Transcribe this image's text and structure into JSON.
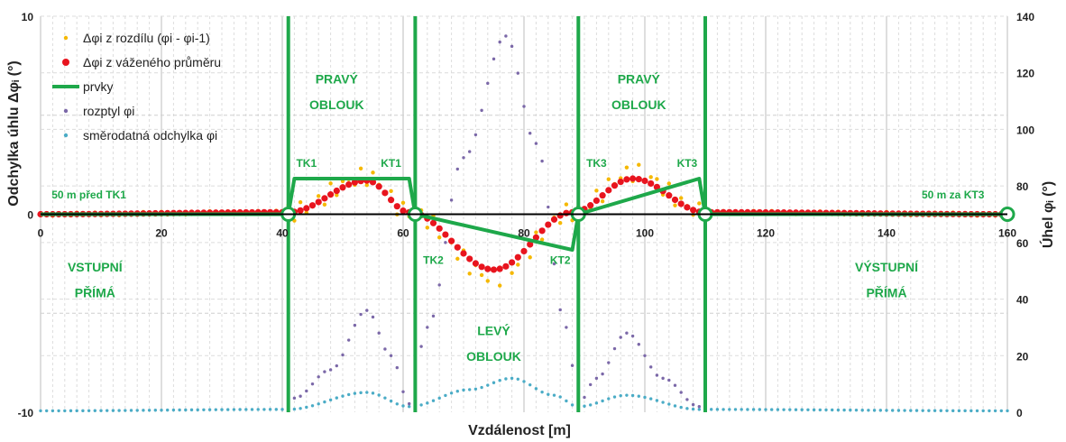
{
  "chart_data": {
    "type": "scatter",
    "xlabel": "Vzdálenost [m]",
    "ylabel": "Odchylka úhlu Δφᵢ (°)",
    "y2label": "Úhel φᵢ (°)",
    "xlim": [
      0,
      160
    ],
    "ylim": [
      -10,
      10
    ],
    "y2lim": [
      0,
      140
    ],
    "xticks": [
      "0",
      "20",
      "40",
      "60",
      "80",
      "100",
      "120",
      "140",
      "160"
    ],
    "yticks": [
      "10",
      "0",
      "-10"
    ],
    "y2ticks": [
      "140",
      "120",
      "100",
      "80",
      "60",
      "40",
      "20",
      "0"
    ],
    "grid": true,
    "legend_position": "top-left",
    "legend": [
      {
        "name": "Δφi z rozdílu (φi - φi-1)",
        "color": "#f5b800",
        "marker": "small-dot"
      },
      {
        "name": "Δφi z váženého průměru",
        "color": "#e8141e",
        "marker": "dot"
      },
      {
        "name": "prvky",
        "color": "#1ea84a",
        "marker": "line"
      },
      {
        "name": "rozptyl φi",
        "color": "#7b68a8",
        "marker": "small-dot"
      },
      {
        "name": "směrodatná odchylka φi",
        "color": "#4bacc6",
        "marker": "small-dot"
      }
    ],
    "series": [
      {
        "name": "prvky",
        "axis": "left",
        "x": [
          0,
          41,
          42,
          61,
          62,
          88,
          89,
          109,
          110,
          160
        ],
        "y": [
          0,
          0,
          1.8,
          1.8,
          0,
          -1.8,
          0,
          1.8,
          0,
          0
        ]
      },
      {
        "name": "Δφi z váženého průměru",
        "axis": "left",
        "profile": [
          [
            0,
            0
          ],
          [
            41,
            0.1
          ],
          [
            54,
            1.7
          ],
          [
            61,
            0.1
          ],
          [
            75,
            -2.8
          ],
          [
            88,
            0.1
          ],
          [
            98,
            1.8
          ],
          [
            110,
            0.1
          ],
          [
            160,
            0
          ]
        ]
      },
      {
        "name": "Δφi z rozdílu (φi - φi-1)",
        "axis": "left",
        "profile": [
          [
            0,
            0
          ],
          [
            41,
            0.1
          ],
          [
            54,
            1.9
          ],
          [
            61,
            0.1
          ],
          [
            75,
            -3.2
          ],
          [
            88,
            0.1
          ],
          [
            98,
            2.1
          ],
          [
            110,
            0.1
          ],
          [
            160,
            0
          ]
        ]
      },
      {
        "name": "rozptyl φi",
        "axis": "right",
        "profile": [
          [
            0,
            0.5
          ],
          [
            40,
            1
          ],
          [
            42,
            5
          ],
          [
            48,
            15
          ],
          [
            54,
            36
          ],
          [
            58,
            20
          ],
          [
            61,
            3
          ],
          [
            64,
            30
          ],
          [
            70,
            90
          ],
          [
            77,
            133
          ],
          [
            82,
            95
          ],
          [
            87,
            30
          ],
          [
            89,
            3
          ],
          [
            92,
            12
          ],
          [
            97,
            28
          ],
          [
            103,
            12
          ],
          [
            109,
            2
          ],
          [
            160,
            0.5
          ]
        ]
      },
      {
        "name": "směrodatná odchylka φi",
        "axis": "right",
        "profile": [
          [
            0,
            0.5
          ],
          [
            41,
            1
          ],
          [
            54,
            7
          ],
          [
            61,
            2
          ],
          [
            71,
            8
          ],
          [
            78,
            12
          ],
          [
            85,
            6
          ],
          [
            89,
            2
          ],
          [
            97,
            6
          ],
          [
            109,
            1
          ],
          [
            160,
            0.5
          ]
        ]
      }
    ],
    "annotations": [
      {
        "text": "50 m před TK1",
        "x": 8,
        "y": 0.8
      },
      {
        "text": "50 m za KT3",
        "x": 151,
        "y": 0.8
      },
      {
        "text": "TK1",
        "x": 44,
        "y": 2.4
      },
      {
        "text": "KT1",
        "x": 58,
        "y": 2.4
      },
      {
        "text": "TK2",
        "x": 65,
        "y": -2.5
      },
      {
        "text": "KT2",
        "x": 86,
        "y": -2.5
      },
      {
        "text": "TK3",
        "x": 92,
        "y": 2.4
      },
      {
        "text": "KT3",
        "x": 107,
        "y": 2.4
      },
      {
        "text": "PRAVÝ",
        "x": 49,
        "y": 6.6
      },
      {
        "text": "OBLOUK",
        "x": 49,
        "y": 5.3
      },
      {
        "text": "PRAVÝ",
        "x": 99,
        "y": 6.6
      },
      {
        "text": "OBLOUK",
        "x": 99,
        "y": 5.3
      },
      {
        "text": "LEVÝ",
        "x": 75,
        "y": -6.1
      },
      {
        "text": "OBLOUK",
        "x": 75,
        "y": -7.4
      },
      {
        "text": "VSTUPNÍ",
        "x": 9,
        "y": -2.9
      },
      {
        "text": "PŘÍMÁ",
        "x": 9,
        "y": -4.2
      },
      {
        "text": "VÝSTUPNÍ",
        "x": 140,
        "y": -2.9
      },
      {
        "text": "PŘÍMÁ",
        "x": 140,
        "y": -4.2
      }
    ],
    "marker_points_x": [
      41,
      62,
      89,
      110,
      160
    ]
  }
}
